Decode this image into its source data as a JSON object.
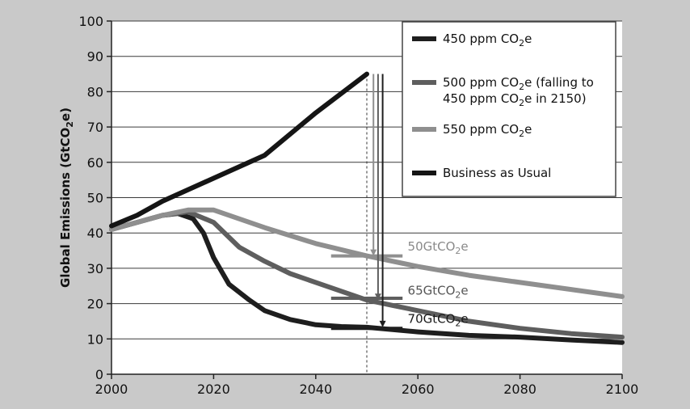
{
  "chart_data": {
    "type": "line",
    "title": "",
    "xlabel": "",
    "ylabel": {
      "base": "Global Emissions (GtCO",
      "sub": "2",
      "tail": "e)"
    },
    "xlim": [
      2000,
      2100
    ],
    "ylim": [
      0,
      100
    ],
    "xticks": [
      2000,
      2020,
      2040,
      2060,
      2080,
      2100
    ],
    "yticks": [
      0,
      10,
      20,
      30,
      40,
      50,
      60,
      70,
      80,
      90,
      100
    ],
    "grid": "horizontal",
    "legend_placement": "top-right",
    "series": [
      {
        "key": "s450",
        "legend": {
          "base": "450 ppm CO",
          "sub": "2",
          "tail": "e"
        },
        "color": "#1e1e1e",
        "points": [
          [
            2000,
            41
          ],
          [
            2005,
            43
          ],
          [
            2010,
            45
          ],
          [
            2013,
            45.5
          ],
          [
            2016,
            44
          ],
          [
            2018,
            40
          ],
          [
            2020,
            33
          ],
          [
            2023,
            25.5
          ],
          [
            2027,
            21
          ],
          [
            2030,
            18
          ],
          [
            2035,
            15.5
          ],
          [
            2040,
            14
          ],
          [
            2045,
            13.5
          ],
          [
            2050,
            13.3
          ],
          [
            2060,
            12
          ],
          [
            2070,
            11
          ],
          [
            2080,
            10.5
          ],
          [
            2090,
            9.7
          ],
          [
            2100,
            9
          ]
        ]
      },
      {
        "key": "s500",
        "legend": {
          "base": "500 ppm CO",
          "sub": "2",
          "tail": "e (falling to",
          "line2": {
            "base": "450 ppm CO",
            "sub": "2",
            "tail": "e in 2150)"
          }
        },
        "color": "#5e5e5e",
        "points": [
          [
            2000,
            41
          ],
          [
            2005,
            43
          ],
          [
            2010,
            45
          ],
          [
            2015,
            46
          ],
          [
            2020,
            43
          ],
          [
            2025,
            36
          ],
          [
            2030,
            32
          ],
          [
            2035,
            28.5
          ],
          [
            2040,
            26
          ],
          [
            2045,
            23.5
          ],
          [
            2050,
            21
          ],
          [
            2055,
            19.5
          ],
          [
            2060,
            18
          ],
          [
            2070,
            15
          ],
          [
            2080,
            13
          ],
          [
            2090,
            11.5
          ],
          [
            2100,
            10.5
          ]
        ]
      },
      {
        "key": "s550",
        "legend": {
          "base": "550 ppm CO",
          "sub": "2",
          "tail": "e"
        },
        "color": "#8f8f8f",
        "points": [
          [
            2000,
            41
          ],
          [
            2005,
            43
          ],
          [
            2010,
            45
          ],
          [
            2015,
            46.5
          ],
          [
            2020,
            46.5
          ],
          [
            2025,
            44
          ],
          [
            2030,
            41.5
          ],
          [
            2040,
            37
          ],
          [
            2050,
            33.5
          ],
          [
            2060,
            30.5
          ],
          [
            2070,
            28
          ],
          [
            2080,
            26
          ],
          [
            2090,
            24
          ],
          [
            2100,
            22
          ]
        ]
      },
      {
        "key": "bau",
        "legend": {
          "base": "Business as Usual",
          "sub": "",
          "tail": ""
        },
        "color": "#151515",
        "points": [
          [
            2000,
            42
          ],
          [
            2005,
            45
          ],
          [
            2010,
            49
          ],
          [
            2020,
            55.5
          ],
          [
            2030,
            62
          ],
          [
            2040,
            74
          ],
          [
            2050,
            85
          ]
        ]
      }
    ],
    "annotations": [
      {
        "base": "50GtCO",
        "sub": "2",
        "tail": "e",
        "x": 2058,
        "y": 35,
        "color": "#8a8a8a",
        "arrow_x": 2051.3,
        "arrow_to": 33.5,
        "arrow_color": "#8f8f8f",
        "bar": [
          2043,
          2057,
          33.5
        ],
        "bar_color": "#8f8f8f"
      },
      {
        "base": "65GtCO",
        "sub": "2",
        "tail": "e",
        "x": 2058,
        "y": 22.5,
        "color": "#555555",
        "arrow_x": 2052.2,
        "arrow_to": 21,
        "arrow_color": "#5e5e5e",
        "bar": [
          2043,
          2057,
          21.5
        ],
        "bar_color": "#5e5e5e"
      },
      {
        "base": "70GtCO",
        "sub": "2",
        "tail": "e",
        "x": 2058,
        "y": 14.5,
        "color": "#1a1a1a",
        "arrow_x": 2053.1,
        "arrow_to": 13.3,
        "arrow_color": "#1e1e1e",
        "bar": [
          2043,
          2057,
          13
        ],
        "bar_color": "#1e1e1e"
      }
    ],
    "vline": {
      "x": 2050,
      "style": "dashed"
    }
  }
}
